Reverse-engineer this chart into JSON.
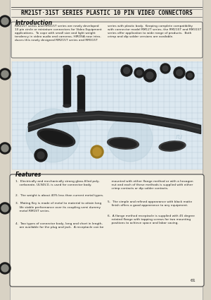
{
  "title": "RM215T·315T SERIES PLASTIC 10 PIN VIDEO CONNECTORS",
  "intro_heading": "Introduction",
  "intro_left": "RM215T series and RM315T series are newly developed\n10 pin circle or miniature connectors for Video Equipment\napplications.  To cope with small size and light weight\ntendency in video audio and cameras, HIROSA now intro-\nduces this newly designed RM215T series and RM315T",
  "intro_right": "series with plastic body.  Keeping complete compatibility\nwith connector model RM12T series, the RM215T and RM315T\nseries offer application to wide range of products.  Both\ncrimp and dip solder versions are available.",
  "features_heading": "Features",
  "feat_left_1": "1.  Electrically and mechanically strong glass-filled poly-\n    carbonate, UL94V-0, is used for connector body.",
  "feat_left_2": "2.  The weight is about 40% less than current metal types.",
  "feat_left_3": "3.  Mating Key is made of metal to material to attain long\n    life stable performance over its coupling semi dummy\n    metal RM1ST series.",
  "feat_left_4": "4.  Two types of connector body, long and short in length,\n    are available for the plug and jack.  A receptacle can be",
  "feat_right_1": "    mounted with either flange method or with a hexagon\n    nut and each of these methods is supplied with either\n    crimp contacts or dip solder contacts.",
  "feat_right_2": "5.  The simple and refined appearance with black matte\n    finish offers a good appearance to any equipment.",
  "feat_right_3": "6.  A flange method receptacle is supplied with 45 degree\n    rotated flange with tapping screws for two mounting\n    positions to achieve space and labor saving.",
  "page_number": "61",
  "bg_color": "#ede8dc",
  "page_bg": "#f0ece0",
  "title_color": "#111111",
  "heading_color": "#111111",
  "text_color": "#222222",
  "grid_color": "#c8d4de",
  "watermark_color": "#b8ceda"
}
